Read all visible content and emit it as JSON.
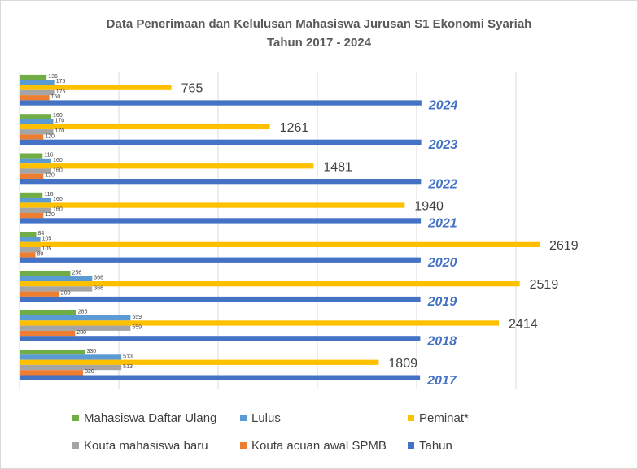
{
  "chart_data": {
    "type": "bar",
    "orientation": "horizontal",
    "title": "Data Penerimaan dan Kelulusan Mahasiswa Jurusan S1 Ekonomi Syariah",
    "subtitle": "Tahun 2017 - 2024",
    "categories": [
      "2017",
      "2018",
      "2019",
      "2020",
      "2021",
      "2022",
      "2023",
      "2024"
    ],
    "series": [
      {
        "name": "Tahun",
        "color": "#4472c4",
        "values": [
          2017,
          2018,
          2019,
          2020,
          2021,
          2022,
          2023,
          2024
        ]
      },
      {
        "name": "Kouta acuan awal SPMB",
        "color": "#ed7d31",
        "values": [
          320,
          280,
          200,
          80,
          120,
          120,
          120,
          150
        ]
      },
      {
        "name": "Kouta mahasiswa baru",
        "color": "#a5a5a5",
        "values": [
          513,
          559,
          366,
          105,
          160,
          160,
          170,
          175
        ]
      },
      {
        "name": "Peminat*",
        "color": "#ffc000",
        "values": [
          1809,
          2414,
          2519,
          2619,
          1940,
          1481,
          1261,
          765
        ]
      },
      {
        "name": "Lulus",
        "color": "#5b9bd5",
        "values": [
          513,
          559,
          366,
          105,
          160,
          160,
          170,
          175
        ]
      },
      {
        "name": "Mahasiswa Daftar Ulang",
        "color": "#70ad47",
        "values": [
          330,
          286,
          256,
          84,
          116,
          116,
          160,
          136
        ]
      }
    ],
    "xlim": [
      0,
      2500
    ],
    "grid": true,
    "legend_position": "bottom",
    "legend": [
      [
        "Mahasiswa Daftar Ulang",
        "Lulus",
        "Peminat*"
      ],
      [
        "Kouta mahasiswa baru",
        "Kouta acuan awal SPMB",
        "Tahun"
      ]
    ]
  }
}
